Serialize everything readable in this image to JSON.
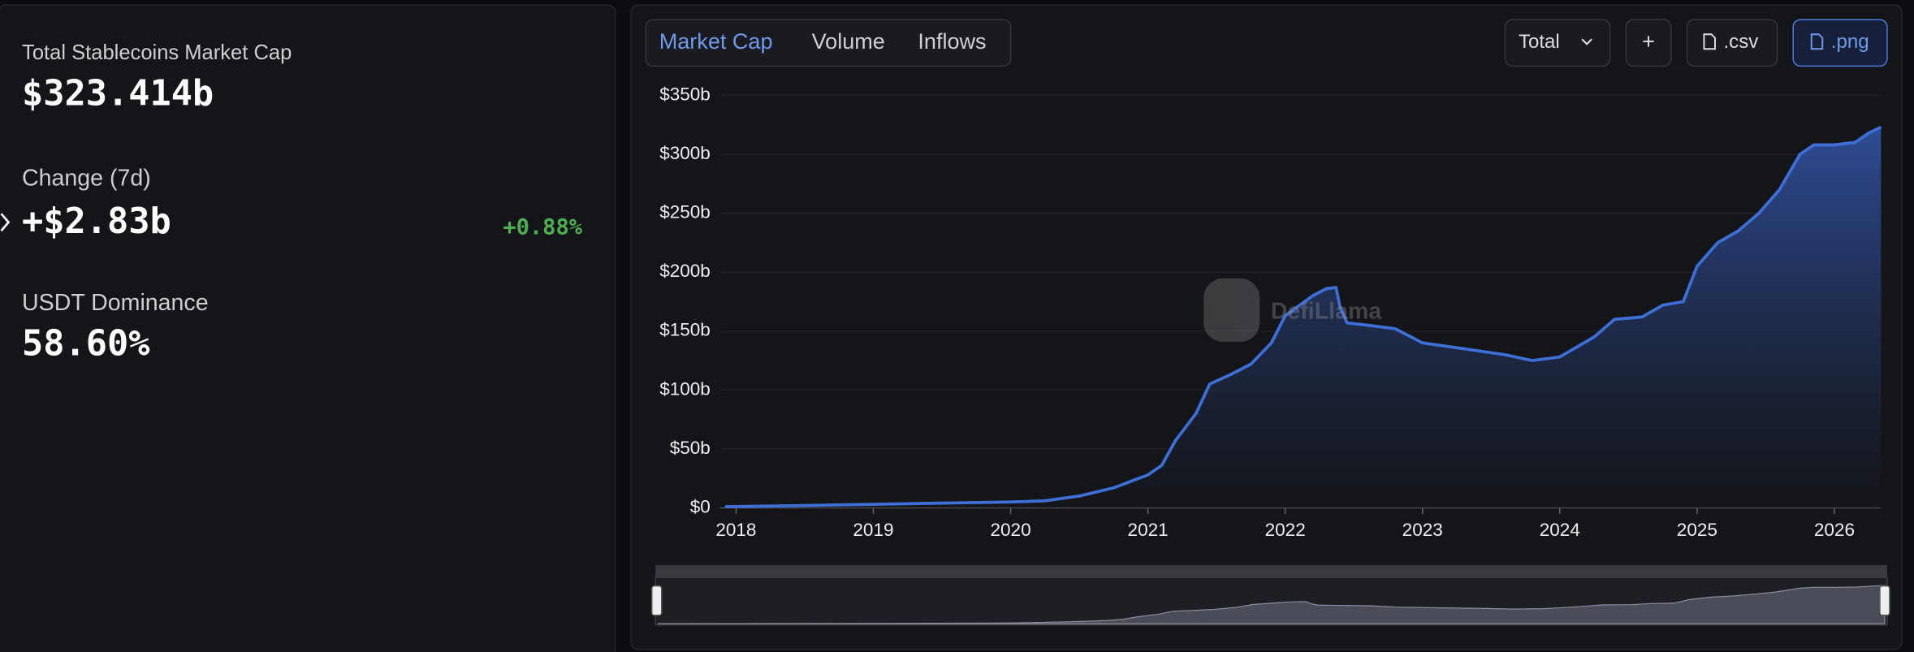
{
  "stats": [
    {
      "label": "Total Stablecoins Market Cap",
      "value": "$323.414b"
    },
    {
      "label": "Change (7d)",
      "value": "+$2.83b",
      "change": "+0.88%"
    },
    {
      "label": "USDT Dominance",
      "value": "58.60%"
    }
  ],
  "tabs": [
    "Market Cap",
    "Volume",
    "Inflows"
  ],
  "buttons": {
    "select": "Total",
    "add": "+",
    "csv": ".csv",
    "png": ".png"
  },
  "watermark": "DefiLlama",
  "chart_data": {
    "type": "area",
    "color": "#3d6fd6",
    "grid": true,
    "x": [
      2017.92,
      2018.5,
      2019,
      2019.5,
      2020,
      2020.25,
      2020.5,
      2020.75,
      2021,
      2021.1,
      2021.2,
      2021.35,
      2021.45,
      2021.6,
      2021.75,
      2021.9,
      2022,
      2022.2,
      2022.3,
      2022.37,
      2022.4,
      2022.45,
      2022.6,
      2022.8,
      2023,
      2023.3,
      2023.6,
      2023.8,
      2024,
      2024.25,
      2024.4,
      2024.6,
      2024.75,
      2024.9,
      2025,
      2025.15,
      2025.3,
      2025.45,
      2025.6,
      2025.75,
      2025.85,
      2026,
      2026.15,
      2026.25,
      2026.34
    ],
    "series": [
      {
        "name": "Market Cap",
        "values": [
          1,
          2,
          3,
          4,
          5,
          6,
          10,
          17,
          28,
          36,
          57,
          80,
          105,
          113,
          122,
          140,
          163,
          180,
          186,
          187,
          170,
          157,
          155,
          152,
          140,
          135,
          130,
          125,
          128,
          145,
          160,
          162,
          172,
          175,
          205,
          225,
          235,
          250,
          270,
          300,
          308,
          308,
          310,
          318,
          323
        ]
      }
    ],
    "xlim": [
      2017.92,
      2026.34
    ],
    "xticks": [
      2018,
      2019,
      2020,
      2021,
      2022,
      2023,
      2024,
      2025,
      2026
    ],
    "ylim": [
      0,
      350
    ],
    "yticks": [
      {
        "value": 0,
        "label": "$0"
      },
      {
        "value": 50,
        "label": "$50b"
      },
      {
        "value": 100,
        "label": "$100b"
      },
      {
        "value": 150,
        "label": "$150b"
      },
      {
        "value": 200,
        "label": "$200b"
      },
      {
        "value": 250,
        "label": "$250b"
      },
      {
        "value": 300,
        "label": "$300b"
      },
      {
        "value": 350,
        "label": "$350b"
      }
    ]
  }
}
